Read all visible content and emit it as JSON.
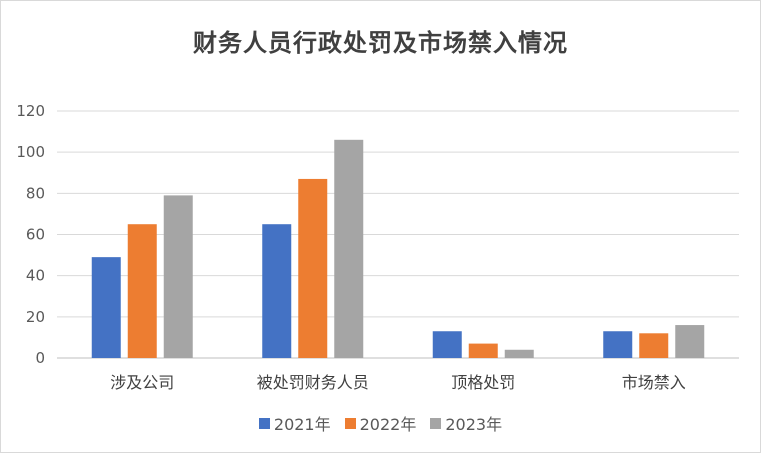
{
  "chart_data": {
    "type": "bar",
    "title": "财务人员行政处罚及市场禁入情况",
    "categories": [
      "涉及公司",
      "被处罚财务人员",
      "顶格处罚",
      "市场禁入"
    ],
    "series": [
      {
        "name": "2021年",
        "values": [
          49,
          65,
          13,
          13
        ],
        "color": "#4472c4"
      },
      {
        "name": "2022年",
        "values": [
          65,
          87,
          7,
          12
        ],
        "color": "#ed7d31"
      },
      {
        "name": "2023年",
        "values": [
          79,
          106,
          4,
          16
        ],
        "color": "#a5a5a5"
      }
    ],
    "ylim": [
      0,
      120
    ],
    "yticks": [
      0,
      20,
      40,
      60,
      80,
      100,
      120
    ],
    "grid": true,
    "legend_position": "bottom"
  }
}
